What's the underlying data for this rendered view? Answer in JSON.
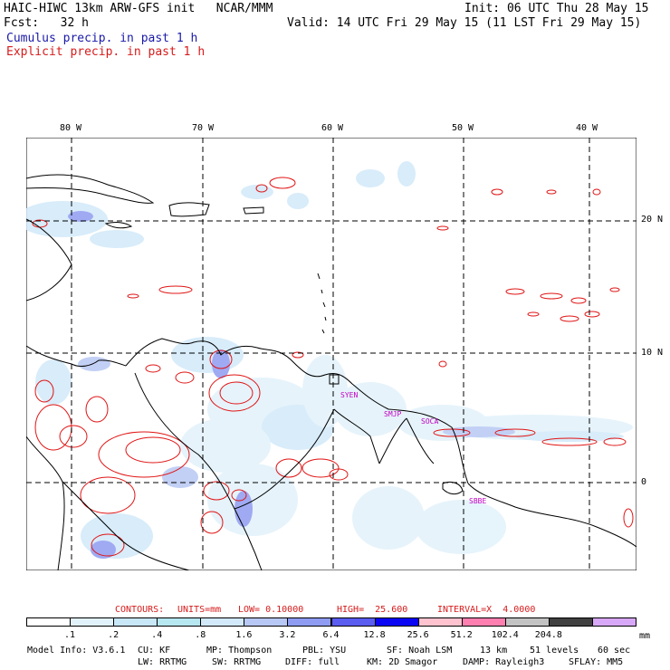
{
  "header": {
    "title_left": "HAIC-HIWC 13km ARW-GFS init   NCAR/MMM",
    "init": "Init: 06 UTC Thu 28 May 15",
    "fcst": "Fcst:   32 h",
    "valid": "Valid: 14 UTC Fri 29 May 15 (11 LST Fri 29 May 15)",
    "cumulus": "Cumulus precip. in past 1 h",
    "explicit": "Explicit precip. in past 1 h"
  },
  "map": {
    "lon_labels": [
      "80 W",
      "70 W",
      "60 W",
      "50 W",
      "40 W"
    ],
    "lat_labels": [
      "20 N",
      "10 N",
      "0"
    ],
    "stations": [
      "SYEN",
      "SMJP",
      "SOCA",
      "SBBE"
    ]
  },
  "contours": {
    "label": "CONTOURS:",
    "units": "UNITS=mm",
    "low": "LOW= 0.10000",
    "high": "HIGH=  25.600",
    "interval": "INTERVAL=X  4.0000"
  },
  "colorbar": {
    "labels": [
      ".1",
      ".2",
      ".4",
      ".8",
      "1.6",
      "3.2",
      "6.4",
      "12.8",
      "25.6",
      "51.2",
      "102.4",
      "204.8"
    ],
    "unit": "mm",
    "colors": [
      "#ffffff",
      "#e2f2fb",
      "#c8e7f7",
      "#b7e7f0",
      "#d2e9fa",
      "#b8c8f4",
      "#8f9cf2",
      "#5b5cf0",
      "#0a05f2",
      "#ffc3cf",
      "#ff80b0",
      "#c3c3c3",
      "#404040",
      "#d7a8f7"
    ]
  },
  "footer": {
    "line1": [
      "Model Info: V3.6.1",
      "CU: KF",
      "MP: Thompson",
      "PBL: YSU",
      "SF: Noah LSM",
      "13 km",
      "51 levels",
      "60 sec"
    ],
    "line2": [
      "LW: RRTMG",
      "SW: RRTMG",
      "DIFF: full",
      "KM: 2D Smagor",
      "DAMP: Rayleigh3",
      "SFLAY: MM5"
    ]
  }
}
